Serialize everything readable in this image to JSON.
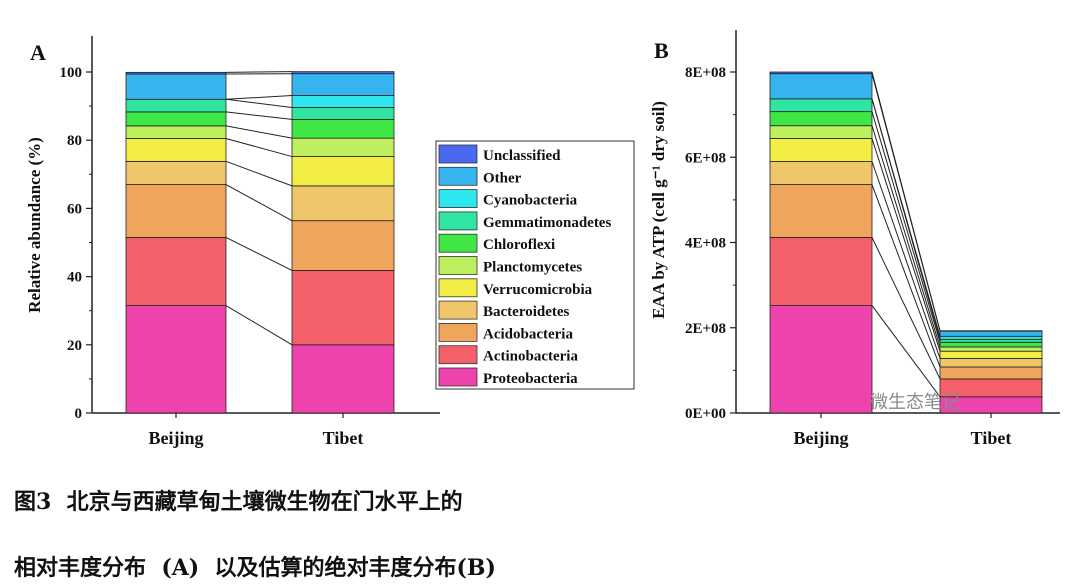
{
  "chart_data": [
    {
      "panel": "A",
      "type": "bar",
      "stacked": true,
      "categories": [
        "Beijing",
        "Tibet"
      ],
      "ylabel": "Relative abundance (%)",
      "ylim": [
        0,
        100
      ],
      "yticks": [
        "0",
        "20",
        "40",
        "60",
        "80",
        "100"
      ],
      "series": [
        {
          "name": "Proteobacteria",
          "color": "#ee42ac",
          "values": [
            31.5,
            20
          ]
        },
        {
          "name": "Actinobacteria",
          "color": "#f4606a",
          "values": [
            20,
            21.8
          ]
        },
        {
          "name": "Acidobacteria",
          "color": "#f0a55c",
          "values": [
            15.5,
            14.6
          ]
        },
        {
          "name": "Bacteroidetes",
          "color": "#f0c66a",
          "values": [
            6.8,
            10.2
          ]
        },
        {
          "name": "Verrucomicrobia",
          "color": "#f2ee46",
          "values": [
            6.7,
            8.6
          ]
        },
        {
          "name": "Planctomycetes",
          "color": "#bdef5e",
          "values": [
            3.7,
            5.4
          ]
        },
        {
          "name": "Chloroflexi",
          "color": "#3fe744",
          "values": [
            4.1,
            5.5
          ]
        },
        {
          "name": "Gemmatimonadetes",
          "color": "#30e5a2",
          "values": [
            3.7,
            3.5
          ]
        },
        {
          "name": "Cyanobacteria",
          "color": "#2ee6ee",
          "values": [
            0,
            3.5
          ]
        },
        {
          "name": "Other",
          "color": "#36b4f0",
          "values": [
            7.4,
            6.4
          ]
        },
        {
          "name": "Unclassified",
          "color": "#4a68f0",
          "values": [
            0.5,
            0.6
          ]
        }
      ]
    },
    {
      "panel": "B",
      "type": "bar",
      "stacked": true,
      "categories": [
        "Beijing",
        "Tibet"
      ],
      "ylabel": "EAA by ATP (cell g⁻¹ dry soil)",
      "ylim": [
        0,
        900000000
      ],
      "yticks": [
        "0E+00",
        "2E+08",
        "4E+08",
        "6E+08",
        "8E+08"
      ],
      "series": [
        {
          "name": "Proteobacteria",
          "values": [
            252000000,
            38000000
          ]
        },
        {
          "name": "Actinobacteria",
          "values": [
            160000000,
            42000000
          ]
        },
        {
          "name": "Acidobacteria",
          "values": [
            124000000,
            28000000
          ]
        },
        {
          "name": "Bacteroidetes",
          "values": [
            54000000,
            20000000
          ]
        },
        {
          "name": "Verrucomicrobia",
          "values": [
            54000000,
            17000000
          ]
        },
        {
          "name": "Planctomycetes",
          "values": [
            30000000,
            10000000
          ]
        },
        {
          "name": "Chloroflexi",
          "values": [
            33000000,
            11000000
          ]
        },
        {
          "name": "Gemmatimonadetes",
          "values": [
            30000000,
            7000000
          ]
        },
        {
          "name": "Cyanobacteria",
          "values": [
            0,
            7000000
          ]
        },
        {
          "name": "Other",
          "values": [
            59000000,
            12000000
          ]
        },
        {
          "name": "Unclassified",
          "values": [
            4000000,
            1000000
          ]
        }
      ]
    }
  ],
  "caption": {
    "line1": "图3  北京与西藏草甸土壤微生物在门水平上的",
    "line2": "相对丰度分布  (A)  以及估算的绝对丰度分布(B)"
  },
  "watermark": "微生态笔记"
}
